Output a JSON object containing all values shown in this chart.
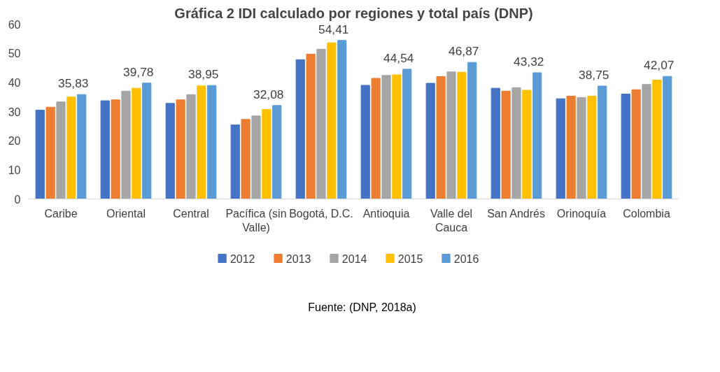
{
  "chart_data": {
    "type": "bar",
    "title": "Gráfica 2 IDI calculado por regiones y total país (DNP)",
    "categories": [
      "Caribe",
      "Oriental",
      "Central",
      "Pacífica (sin Valle)",
      "Bogotá, D.C.",
      "Antioquia",
      "Valle del Cauca",
      "San Andrés",
      "Orinoquía",
      "Colombia"
    ],
    "series": [
      {
        "name": "2012",
        "color": "#4472c4",
        "values": [
          30.5,
          33.7,
          32.8,
          25.4,
          47.8,
          39.0,
          39.7,
          38.0,
          34.4,
          36.0
        ]
      },
      {
        "name": "2013",
        "color": "#ed7d31",
        "values": [
          31.5,
          34.0,
          34.0,
          27.3,
          49.7,
          41.4,
          42.0,
          37.0,
          35.3,
          37.5
        ]
      },
      {
        "name": "2014",
        "color": "#a5a5a5",
        "values": [
          33.3,
          37.0,
          35.8,
          28.5,
          51.4,
          42.4,
          43.6,
          38.2,
          34.8,
          39.3
        ]
      },
      {
        "name": "2015",
        "color": "#ffc000",
        "values": [
          35.0,
          38.0,
          38.8,
          30.7,
          53.6,
          42.6,
          43.5,
          37.3,
          35.3,
          40.8
        ]
      },
      {
        "name": "2016",
        "color": "#5b9bd5",
        "values": [
          35.83,
          39.78,
          38.95,
          32.08,
          54.41,
          44.54,
          46.87,
          43.32,
          38.75,
          42.07
        ],
        "value_labels": [
          "35,83",
          "39,78",
          "38,95",
          "32,08",
          "54,41",
          "44,54",
          "46,87",
          "43,32",
          "38,75",
          "42,07"
        ]
      }
    ],
    "ylim": [
      0,
      60
    ],
    "yticks": [
      0,
      10,
      20,
      30,
      40,
      50,
      60
    ],
    "grid": false,
    "legend": "bottom",
    "annotations": [
      "Fuente: (DNP, 2018a)"
    ]
  }
}
